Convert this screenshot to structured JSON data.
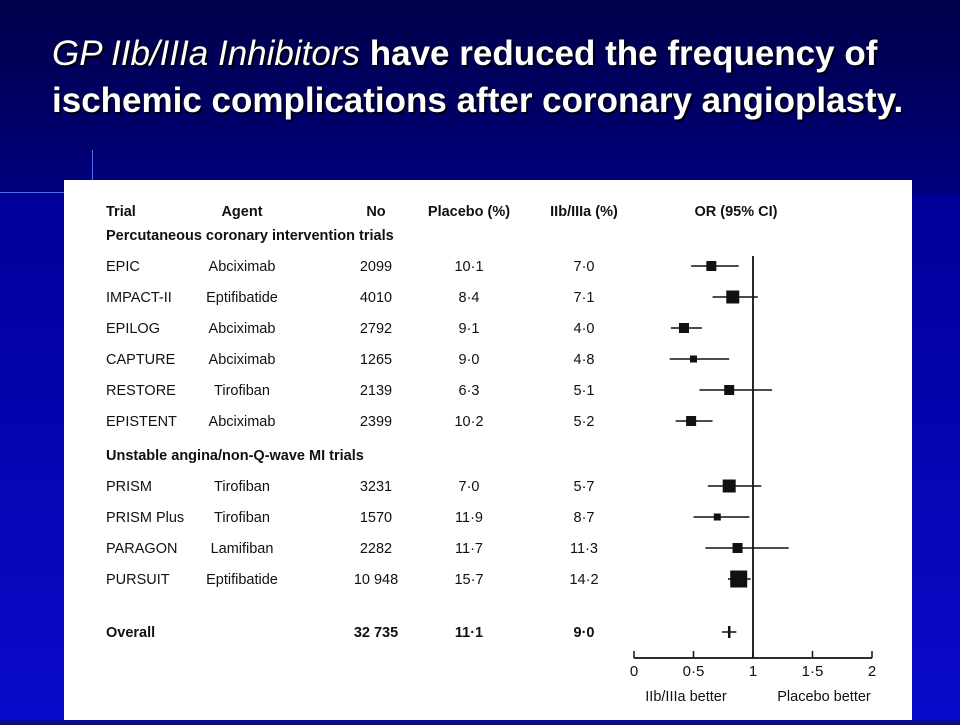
{
  "slide": {
    "title_italic": "GP IIb/IIIa Inhibitors",
    "title_rest": " have reduced the frequency of ischemic complications after coronary angioplasty."
  },
  "chart_data": {
    "type": "forest",
    "columns": [
      "Trial",
      "Agent",
      "No",
      "Placebo (%)",
      "IIb/IIIa (%)",
      "OR (95% CI)"
    ],
    "sections": [
      {
        "label": "Percutaneous coronary intervention trials",
        "rows": [
          {
            "trial": "EPIC",
            "agent": "Abciximab",
            "n": "2099",
            "placebo": "10·1",
            "drug": "7·0",
            "or": 0.65,
            "lo": 0.48,
            "hi": 0.88,
            "size": "m"
          },
          {
            "trial": "IMPACT-II",
            "agent": "Eptifibatide",
            "n": "4010",
            "placebo": "8·4",
            "drug": "7·1",
            "or": 0.83,
            "lo": 0.66,
            "hi": 1.04,
            "size": "l"
          },
          {
            "trial": "EPILOG",
            "agent": "Abciximab",
            "n": "2792",
            "placebo": "9·1",
            "drug": "4·0",
            "or": 0.42,
            "lo": 0.31,
            "hi": 0.57,
            "size": "m"
          },
          {
            "trial": "CAPTURE",
            "agent": "Abciximab",
            "n": "1265",
            "placebo": "9·0",
            "drug": "4·8",
            "or": 0.5,
            "lo": 0.3,
            "hi": 0.8,
            "size": "s"
          },
          {
            "trial": "RESTORE",
            "agent": "Tirofiban",
            "n": "2139",
            "placebo": "6·3",
            "drug": "5·1",
            "or": 0.8,
            "lo": 0.55,
            "hi": 1.16,
            "size": "m"
          },
          {
            "trial": "EPISTENT",
            "agent": "Abciximab",
            "n": "2399",
            "placebo": "10·2",
            "drug": "5·2",
            "or": 0.48,
            "lo": 0.35,
            "hi": 0.66,
            "size": "m"
          }
        ]
      },
      {
        "label": "Unstable angina/non-Q-wave MI trials",
        "rows": [
          {
            "trial": "PRISM",
            "agent": "Tirofiban",
            "n": "3231",
            "placebo": "7·0",
            "drug": "5·7",
            "or": 0.8,
            "lo": 0.62,
            "hi": 1.07,
            "size": "l"
          },
          {
            "trial": "PRISM Plus",
            "agent": "Tirofiban",
            "n": "1570",
            "placebo": "11·9",
            "drug": "8·7",
            "or": 0.7,
            "lo": 0.5,
            "hi": 0.97,
            "size": "s"
          },
          {
            "trial": "PARAGON",
            "agent": "Lamifiban",
            "n": "2282",
            "placebo": "11·7",
            "drug": "11·3",
            "or": 0.87,
            "lo": 0.6,
            "hi": 1.3,
            "size": "m"
          },
          {
            "trial": "PURSUIT",
            "agent": "Eptifibatide",
            "n": "10 948",
            "placebo": "15·7",
            "drug": "14·2",
            "or": 0.88,
            "lo": 0.79,
            "hi": 0.98,
            "size": "xl"
          }
        ]
      }
    ],
    "overall": {
      "trial": "Overall",
      "n": "32 735",
      "placebo": "11·1",
      "drug": "9·0",
      "or": 0.8,
      "lo": 0.74,
      "hi": 0.86
    },
    "x_axis": {
      "min": 0,
      "max": 2,
      "ticks": [
        0,
        0.5,
        1,
        1.5,
        2
      ],
      "tick_labels": [
        "0",
        "0·5",
        "1",
        "1·5",
        "2"
      ],
      "reference_line": 1
    },
    "axis_labels": {
      "left": "IIb/IIIa better",
      "right": "Placebo better"
    }
  }
}
